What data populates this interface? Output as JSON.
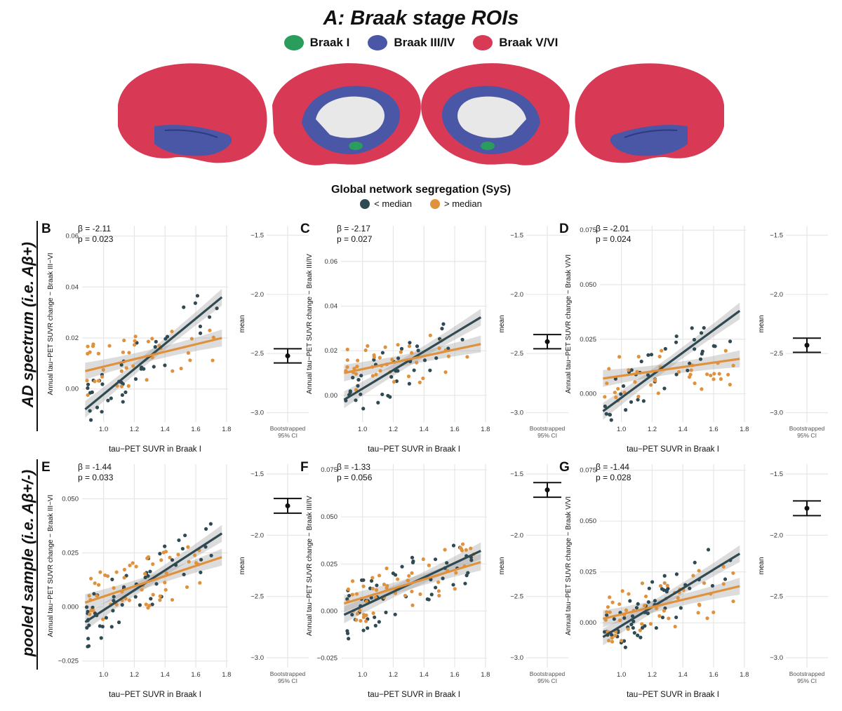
{
  "figure": {
    "title": "A: Braak stage ROIs",
    "braak_legend": [
      {
        "label": "Braak I",
        "color": "#2a9d5c"
      },
      {
        "label": "Braak III/IV",
        "color": "#4a56a6"
      },
      {
        "label": "Braak V/VI",
        "color": "#d83a56"
      }
    ],
    "group_legend_title": "Global network segregation (SyS)",
    "group_legend": [
      {
        "label": "< median",
        "color": "#2f4a52"
      },
      {
        "label": "> median",
        "color": "#e0913c"
      }
    ],
    "row_labels": [
      "AD spectrum (i.e. Aβ+)",
      "pooled sample (i.e. Aβ+/-)"
    ],
    "common_xlabel": "tau−PET SUVR in Braak I",
    "ci_xlabel_line1": "Bootstrapped",
    "ci_xlabel_line2": "95% CI",
    "ci_ylabel": "mean"
  },
  "chart_data": [
    {
      "panel": "B",
      "type": "scatter",
      "ylabel": "Annual tau−PET SUVR change − Braak III−VI",
      "xlim": [
        0.86,
        1.81
      ],
      "ylim": [
        -0.013,
        0.064
      ],
      "xticks": [
        1.0,
        1.2,
        1.4,
        1.6,
        1.8
      ],
      "xticklabels": [
        "1.0",
        "1.2",
        "1.4",
        "1.6",
        "1.8"
      ],
      "yticks": [
        0,
        0.02,
        0.04,
        0.06
      ],
      "yticklabels": [
        "0.00",
        "0.02",
        "0.04",
        "0.06"
      ],
      "stats": [
        "β = -2.11",
        "p = 0.023"
      ],
      "lines": {
        "low": [
          [
            0.88,
            -0.008
          ],
          [
            1.77,
            0.036
          ]
        ],
        "high": [
          [
            0.88,
            0.007
          ],
          [
            1.77,
            0.02
          ]
        ]
      },
      "ci": {
        "ylim": [
          -3.08,
          -1.42
        ],
        "yticks": [
          -3.0,
          -2.5,
          -2.0,
          -1.5
        ],
        "yticklabels": [
          "−3.0",
          "−2.5",
          "−2.0",
          "−1.5"
        ],
        "mean": -2.52,
        "lower": -2.58,
        "upper": -2.46
      }
    },
    {
      "panel": "C",
      "type": "scatter",
      "ylabel": "Annual tau−PET SUVR change − Braak III/IV",
      "xlim": [
        0.86,
        1.81
      ],
      "ylim": [
        -0.012,
        0.076
      ],
      "xticks": [
        1.0,
        1.2,
        1.4,
        1.6,
        1.8
      ],
      "xticklabels": [
        "1.0",
        "1.2",
        "1.4",
        "1.6",
        "1.8"
      ],
      "yticks": [
        0,
        0.02,
        0.04,
        0.06
      ],
      "yticklabels": [
        "0.00",
        "0.02",
        "0.04",
        "0.06"
      ],
      "stats": [
        "β = -2.17",
        "p = 0.027"
      ],
      "lines": {
        "low": [
          [
            0.88,
            -0.002
          ],
          [
            1.77,
            0.035
          ]
        ],
        "high": [
          [
            0.88,
            0.01
          ],
          [
            1.77,
            0.023
          ]
        ]
      },
      "ci": {
        "ylim": [
          -3.08,
          -1.42
        ],
        "yticks": [
          -3.0,
          -2.5,
          -2.0,
          -1.5
        ],
        "yticklabels": [
          "−3.0",
          "−2.5",
          "−2.0",
          "−1.5"
        ],
        "mean": -2.4,
        "lower": -2.46,
        "upper": -2.34
      }
    },
    {
      "panel": "D",
      "type": "scatter",
      "ylabel": "Annual tau−PET SUVR change − Braak V/VI",
      "xlim": [
        0.86,
        1.81
      ],
      "ylim": [
        -0.013,
        0.077
      ],
      "xticks": [
        1.0,
        1.2,
        1.4,
        1.6,
        1.8
      ],
      "xticklabels": [
        "1.0",
        "1.2",
        "1.4",
        "1.6",
        "1.8"
      ],
      "yticks": [
        0,
        0.025,
        0.05,
        0.075
      ],
      "yticklabels": [
        "0.000",
        "0.025",
        "0.050",
        "0.075"
      ],
      "stats": [
        "β = -2.01",
        "p = 0.024"
      ],
      "lines": {
        "low": [
          [
            0.88,
            -0.008
          ],
          [
            1.77,
            0.038
          ]
        ],
        "high": [
          [
            0.88,
            0.007
          ],
          [
            1.77,
            0.016
          ]
        ]
      },
      "ci": {
        "ylim": [
          -3.08,
          -1.42
        ],
        "yticks": [
          -3.0,
          -2.5,
          -2.0,
          -1.5
        ],
        "yticklabels": [
          "−3.0",
          "−2.5",
          "−2.0",
          "−1.5"
        ],
        "mean": -2.43,
        "lower": -2.49,
        "upper": -2.37
      }
    },
    {
      "panel": "E",
      "type": "scatter",
      "ylabel": "Annual tau−PET SUVR change − Braak III−VI",
      "xlim": [
        0.86,
        1.81
      ],
      "ylim": [
        -0.028,
        0.066
      ],
      "xticks": [
        1.0,
        1.2,
        1.4,
        1.6,
        1.8
      ],
      "xticklabels": [
        "1.0",
        "1.2",
        "1.4",
        "1.6",
        "1.8"
      ],
      "yticks": [
        -0.025,
        0,
        0.025,
        0.05
      ],
      "yticklabels": [
        "−0.025",
        "0.000",
        "0.025",
        "0.050"
      ],
      "stats": [
        "β = -1.44",
        "p = 0.033"
      ],
      "lines": {
        "low": [
          [
            0.88,
            -0.007
          ],
          [
            1.77,
            0.034
          ]
        ],
        "high": [
          [
            0.88,
            0.002
          ],
          [
            1.77,
            0.023
          ]
        ]
      },
      "ci": {
        "ylim": [
          -3.08,
          -1.42
        ],
        "yticks": [
          -3.0,
          -2.5,
          -2.0,
          -1.5
        ],
        "yticklabels": [
          "−3.0",
          "−2.5",
          "−2.0",
          "−1.5"
        ],
        "mean": -1.76,
        "lower": -1.82,
        "upper": -1.7
      }
    },
    {
      "panel": "F",
      "type": "scatter",
      "ylabel": "Annual tau−PET SUVR change − Braak III/IV",
      "xlim": [
        0.86,
        1.81
      ],
      "ylim": [
        -0.03,
        0.078
      ],
      "xticks": [
        1.0,
        1.2,
        1.4,
        1.6,
        1.8
      ],
      "xticklabels": [
        "1.0",
        "1.2",
        "1.4",
        "1.6",
        "1.8"
      ],
      "yticks": [
        -0.025,
        0,
        0.025,
        0.05,
        0.075
      ],
      "yticklabels": [
        "−0.025",
        "0.000",
        "0.025",
        "0.050",
        "0.075"
      ],
      "stats": [
        "β = -1.33",
        "p = 0.056"
      ],
      "lines": {
        "low": [
          [
            0.88,
            -0.002
          ],
          [
            1.77,
            0.032
          ]
        ],
        "high": [
          [
            0.88,
            0.004
          ],
          [
            1.77,
            0.026
          ]
        ]
      },
      "ci": {
        "ylim": [
          -3.08,
          -1.42
        ],
        "yticks": [
          -3.0,
          -2.5,
          -2.0,
          -1.5
        ],
        "yticklabels": [
          "−3.0",
          "−2.5",
          "−2.0",
          "−1.5"
        ],
        "mean": -1.63,
        "lower": -1.69,
        "upper": -1.57
      }
    },
    {
      "panel": "G",
      "type": "scatter",
      "ylabel": "Annual tau−PET SUVR change − Braak V/VI",
      "xlim": [
        0.86,
        1.81
      ],
      "ylim": [
        -0.022,
        0.078
      ],
      "xticks": [
        1.0,
        1.2,
        1.4,
        1.6,
        1.8
      ],
      "xticklabels": [
        "1.0",
        "1.2",
        "1.4",
        "1.6",
        "1.8"
      ],
      "yticks": [
        0,
        0.025,
        0.05,
        0.075
      ],
      "yticklabels": [
        "0.000",
        "0.025",
        "0.050",
        "0.075"
      ],
      "stats": [
        "β = -1.44",
        "p = 0.028"
      ],
      "lines": {
        "low": [
          [
            0.88,
            -0.007
          ],
          [
            1.77,
            0.034
          ]
        ],
        "high": [
          [
            0.88,
            0.002
          ],
          [
            1.77,
            0.018
          ]
        ]
      },
      "ci": {
        "ylim": [
          -3.08,
          -1.42
        ],
        "yticks": [
          -3.0,
          -2.5,
          -2.0,
          -1.5
        ],
        "yticklabels": [
          "−3.0",
          "−2.5",
          "−2.0",
          "−1.5"
        ],
        "mean": -1.78,
        "lower": -1.84,
        "upper": -1.72
      }
    }
  ]
}
